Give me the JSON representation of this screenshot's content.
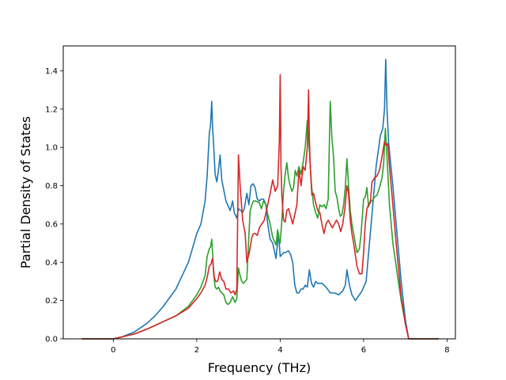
{
  "chart_data": {
    "type": "line",
    "title": "",
    "xlabel": "Frequency (THz)",
    "ylabel": "Partial Density of States",
    "xlim": [
      -1.2,
      8.2
    ],
    "ylim": [
      0.0,
      1.53
    ],
    "xticks": [
      0,
      2,
      4,
      6,
      8
    ],
    "xtick_labels": [
      "0",
      "2",
      "4",
      "6",
      "8"
    ],
    "yticks": [
      0.0,
      0.2,
      0.4,
      0.6,
      0.8,
      1.0,
      1.2,
      1.4
    ],
    "ytick_labels": [
      "0.0",
      "0.2",
      "0.4",
      "0.6",
      "0.8",
      "1.0",
      "1.2",
      "1.4"
    ],
    "grid": false,
    "legend": "none",
    "series": [
      {
        "color": "#1f77b4",
        "x": [
          -0.75,
          0,
          0.2,
          0.5,
          0.8,
          1.0,
          1.2,
          1.5,
          1.8,
          2.0,
          2.1,
          2.2,
          2.25,
          2.3,
          2.33,
          2.36,
          2.38,
          2.4,
          2.44,
          2.48,
          2.52,
          2.56,
          2.6,
          2.7,
          2.8,
          2.86,
          2.9,
          2.96,
          3.0,
          3.06,
          3.1,
          3.14,
          3.2,
          3.25,
          3.3,
          3.35,
          3.4,
          3.45,
          3.5,
          3.55,
          3.6,
          3.66,
          3.7,
          3.76,
          3.82,
          3.9,
          3.96,
          4.0,
          4.04,
          4.08,
          4.12,
          4.2,
          4.25,
          4.3,
          4.35,
          4.4,
          4.45,
          4.5,
          4.55,
          4.6,
          4.65,
          4.7,
          4.75,
          4.8,
          4.85,
          4.9,
          5.0,
          5.1,
          5.2,
          5.3,
          5.4,
          5.5,
          5.56,
          5.6,
          5.66,
          5.72,
          5.8,
          5.9,
          5.96,
          6.0,
          6.06,
          6.12,
          6.2,
          6.3,
          6.4,
          6.46,
          6.5,
          6.53,
          6.56,
          6.6,
          6.7,
          6.8,
          6.9,
          7.0,
          7.08,
          7.8
        ],
        "y": [
          0.0,
          0.0,
          0.01,
          0.035,
          0.08,
          0.12,
          0.17,
          0.26,
          0.4,
          0.55,
          0.6,
          0.72,
          0.85,
          1.07,
          1.12,
          1.24,
          1.1,
          1.03,
          0.86,
          0.82,
          0.88,
          0.96,
          0.83,
          0.72,
          0.67,
          0.72,
          0.66,
          0.63,
          0.68,
          0.67,
          0.66,
          0.68,
          0.76,
          0.7,
          0.8,
          0.81,
          0.79,
          0.73,
          0.72,
          0.73,
          0.73,
          0.7,
          0.6,
          0.52,
          0.5,
          0.42,
          0.55,
          0.43,
          0.44,
          0.45,
          0.45,
          0.46,
          0.44,
          0.4,
          0.28,
          0.24,
          0.24,
          0.26,
          0.26,
          0.28,
          0.27,
          0.36,
          0.29,
          0.27,
          0.3,
          0.29,
          0.29,
          0.27,
          0.24,
          0.24,
          0.23,
          0.25,
          0.28,
          0.36,
          0.28,
          0.23,
          0.2,
          0.23,
          0.25,
          0.27,
          0.3,
          0.45,
          0.65,
          0.9,
          1.06,
          1.1,
          1.2,
          1.46,
          1.2,
          1.02,
          0.8,
          0.55,
          0.3,
          0.1,
          0.0,
          0.0
        ]
      },
      {
        "color": "#2ca02c",
        "x": [
          -0.75,
          0,
          0.2,
          0.5,
          0.8,
          1.0,
          1.2,
          1.5,
          1.8,
          2.0,
          2.1,
          2.2,
          2.25,
          2.3,
          2.33,
          2.36,
          2.38,
          2.4,
          2.44,
          2.48,
          2.52,
          2.56,
          2.6,
          2.65,
          2.7,
          2.75,
          2.8,
          2.86,
          2.92,
          2.96,
          3.0,
          3.04,
          3.08,
          3.12,
          3.16,
          3.2,
          3.24,
          3.28,
          3.32,
          3.36,
          3.42,
          3.5,
          3.55,
          3.6,
          3.66,
          3.7,
          3.76,
          3.82,
          3.86,
          3.9,
          3.94,
          3.98,
          4.0,
          4.04,
          4.08,
          4.12,
          4.16,
          4.2,
          4.24,
          4.28,
          4.32,
          4.36,
          4.4,
          4.45,
          4.5,
          4.55,
          4.6,
          4.65,
          4.7,
          4.75,
          4.8,
          4.85,
          4.9,
          4.95,
          5.0,
          5.05,
          5.1,
          5.15,
          5.2,
          5.24,
          5.28,
          5.32,
          5.36,
          5.4,
          5.44,
          5.48,
          5.52,
          5.56,
          5.6,
          5.64,
          5.68,
          5.72,
          5.76,
          5.8,
          5.84,
          5.9,
          5.94,
          6.0,
          6.04,
          6.08,
          6.12,
          6.16,
          6.2,
          6.26,
          6.32,
          6.38,
          6.44,
          6.48,
          6.52,
          6.56,
          6.62,
          6.7,
          6.8,
          6.9,
          7.0,
          7.08,
          7.8
        ],
        "y": [
          0.0,
          0.0,
          0.01,
          0.025,
          0.05,
          0.07,
          0.09,
          0.12,
          0.17,
          0.23,
          0.27,
          0.33,
          0.43,
          0.47,
          0.48,
          0.52,
          0.45,
          0.35,
          0.27,
          0.26,
          0.27,
          0.25,
          0.24,
          0.23,
          0.19,
          0.18,
          0.19,
          0.22,
          0.19,
          0.21,
          0.37,
          0.33,
          0.3,
          0.29,
          0.3,
          0.31,
          0.5,
          0.67,
          0.7,
          0.72,
          0.72,
          0.71,
          0.68,
          0.72,
          0.7,
          0.65,
          0.6,
          0.53,
          0.51,
          0.49,
          0.57,
          0.51,
          0.5,
          0.62,
          0.77,
          0.86,
          0.92,
          0.84,
          0.8,
          0.77,
          0.79,
          0.88,
          0.85,
          0.9,
          0.86,
          0.92,
          1.0,
          1.14,
          0.98,
          0.8,
          0.7,
          0.66,
          0.63,
          0.7,
          0.69,
          0.7,
          0.68,
          0.73,
          1.24,
          1.05,
          0.95,
          0.77,
          0.74,
          0.68,
          0.64,
          0.65,
          0.7,
          0.79,
          0.94,
          0.8,
          0.67,
          0.6,
          0.55,
          0.5,
          0.45,
          0.47,
          0.55,
          0.73,
          0.74,
          0.79,
          0.69,
          0.72,
          0.72,
          0.74,
          0.75,
          0.79,
          0.84,
          0.91,
          1.1,
          0.95,
          0.7,
          0.5,
          0.35,
          0.2,
          0.08,
          0.0,
          0.0
        ]
      },
      {
        "color": "#d62728",
        "x": [
          -0.75,
          0,
          0.2,
          0.5,
          0.8,
          1.0,
          1.2,
          1.5,
          1.8,
          2.0,
          2.1,
          2.2,
          2.25,
          2.3,
          2.34,
          2.38,
          2.42,
          2.46,
          2.5,
          2.55,
          2.6,
          2.65,
          2.7,
          2.76,
          2.82,
          2.88,
          2.92,
          2.96,
          3.0,
          3.04,
          3.1,
          3.16,
          3.2,
          3.26,
          3.32,
          3.36,
          3.4,
          3.45,
          3.5,
          3.56,
          3.62,
          3.7,
          3.76,
          3.82,
          3.88,
          3.94,
          3.98,
          4.0,
          4.02,
          4.04,
          4.08,
          4.12,
          4.16,
          4.2,
          4.25,
          4.3,
          4.35,
          4.4,
          4.45,
          4.5,
          4.55,
          4.6,
          4.65,
          4.68,
          4.7,
          4.72,
          4.76,
          4.8,
          4.84,
          4.9,
          4.95,
          5.0,
          5.05,
          5.1,
          5.15,
          5.2,
          5.25,
          5.3,
          5.35,
          5.4,
          5.45,
          5.5,
          5.55,
          5.6,
          5.64,
          5.68,
          5.72,
          5.76,
          5.8,
          5.84,
          5.9,
          5.96,
          6.0,
          6.04,
          6.08,
          6.12,
          6.16,
          6.2,
          6.26,
          6.32,
          6.38,
          6.44,
          6.5,
          6.54,
          6.58,
          6.62,
          6.7,
          6.8,
          6.9,
          7.0,
          7.08,
          7.8
        ],
        "y": [
          0.0,
          0.0,
          0.01,
          0.025,
          0.05,
          0.07,
          0.09,
          0.12,
          0.16,
          0.21,
          0.24,
          0.28,
          0.32,
          0.38,
          0.39,
          0.42,
          0.32,
          0.3,
          0.3,
          0.35,
          0.31,
          0.3,
          0.26,
          0.26,
          0.24,
          0.25,
          0.23,
          0.26,
          0.96,
          0.8,
          0.62,
          0.55,
          0.4,
          0.45,
          0.53,
          0.55,
          0.55,
          0.54,
          0.58,
          0.6,
          0.62,
          0.7,
          0.76,
          0.83,
          0.77,
          0.8,
          1.03,
          1.38,
          0.9,
          0.75,
          0.62,
          0.61,
          0.67,
          0.68,
          0.64,
          0.6,
          0.65,
          0.7,
          0.88,
          0.8,
          0.9,
          0.88,
          1.0,
          1.3,
          1.05,
          0.9,
          0.75,
          0.76,
          0.72,
          0.67,
          0.66,
          0.6,
          0.55,
          0.6,
          0.62,
          0.6,
          0.58,
          0.6,
          0.62,
          0.6,
          0.56,
          0.6,
          0.68,
          0.8,
          0.76,
          0.62,
          0.55,
          0.5,
          0.44,
          0.38,
          0.34,
          0.34,
          0.45,
          0.6,
          0.68,
          0.7,
          0.71,
          0.82,
          0.84,
          0.85,
          0.88,
          0.95,
          1.03,
          1.01,
          1.02,
          0.9,
          0.7,
          0.45,
          0.22,
          0.08,
          0.0,
          0.0
        ]
      }
    ]
  }
}
